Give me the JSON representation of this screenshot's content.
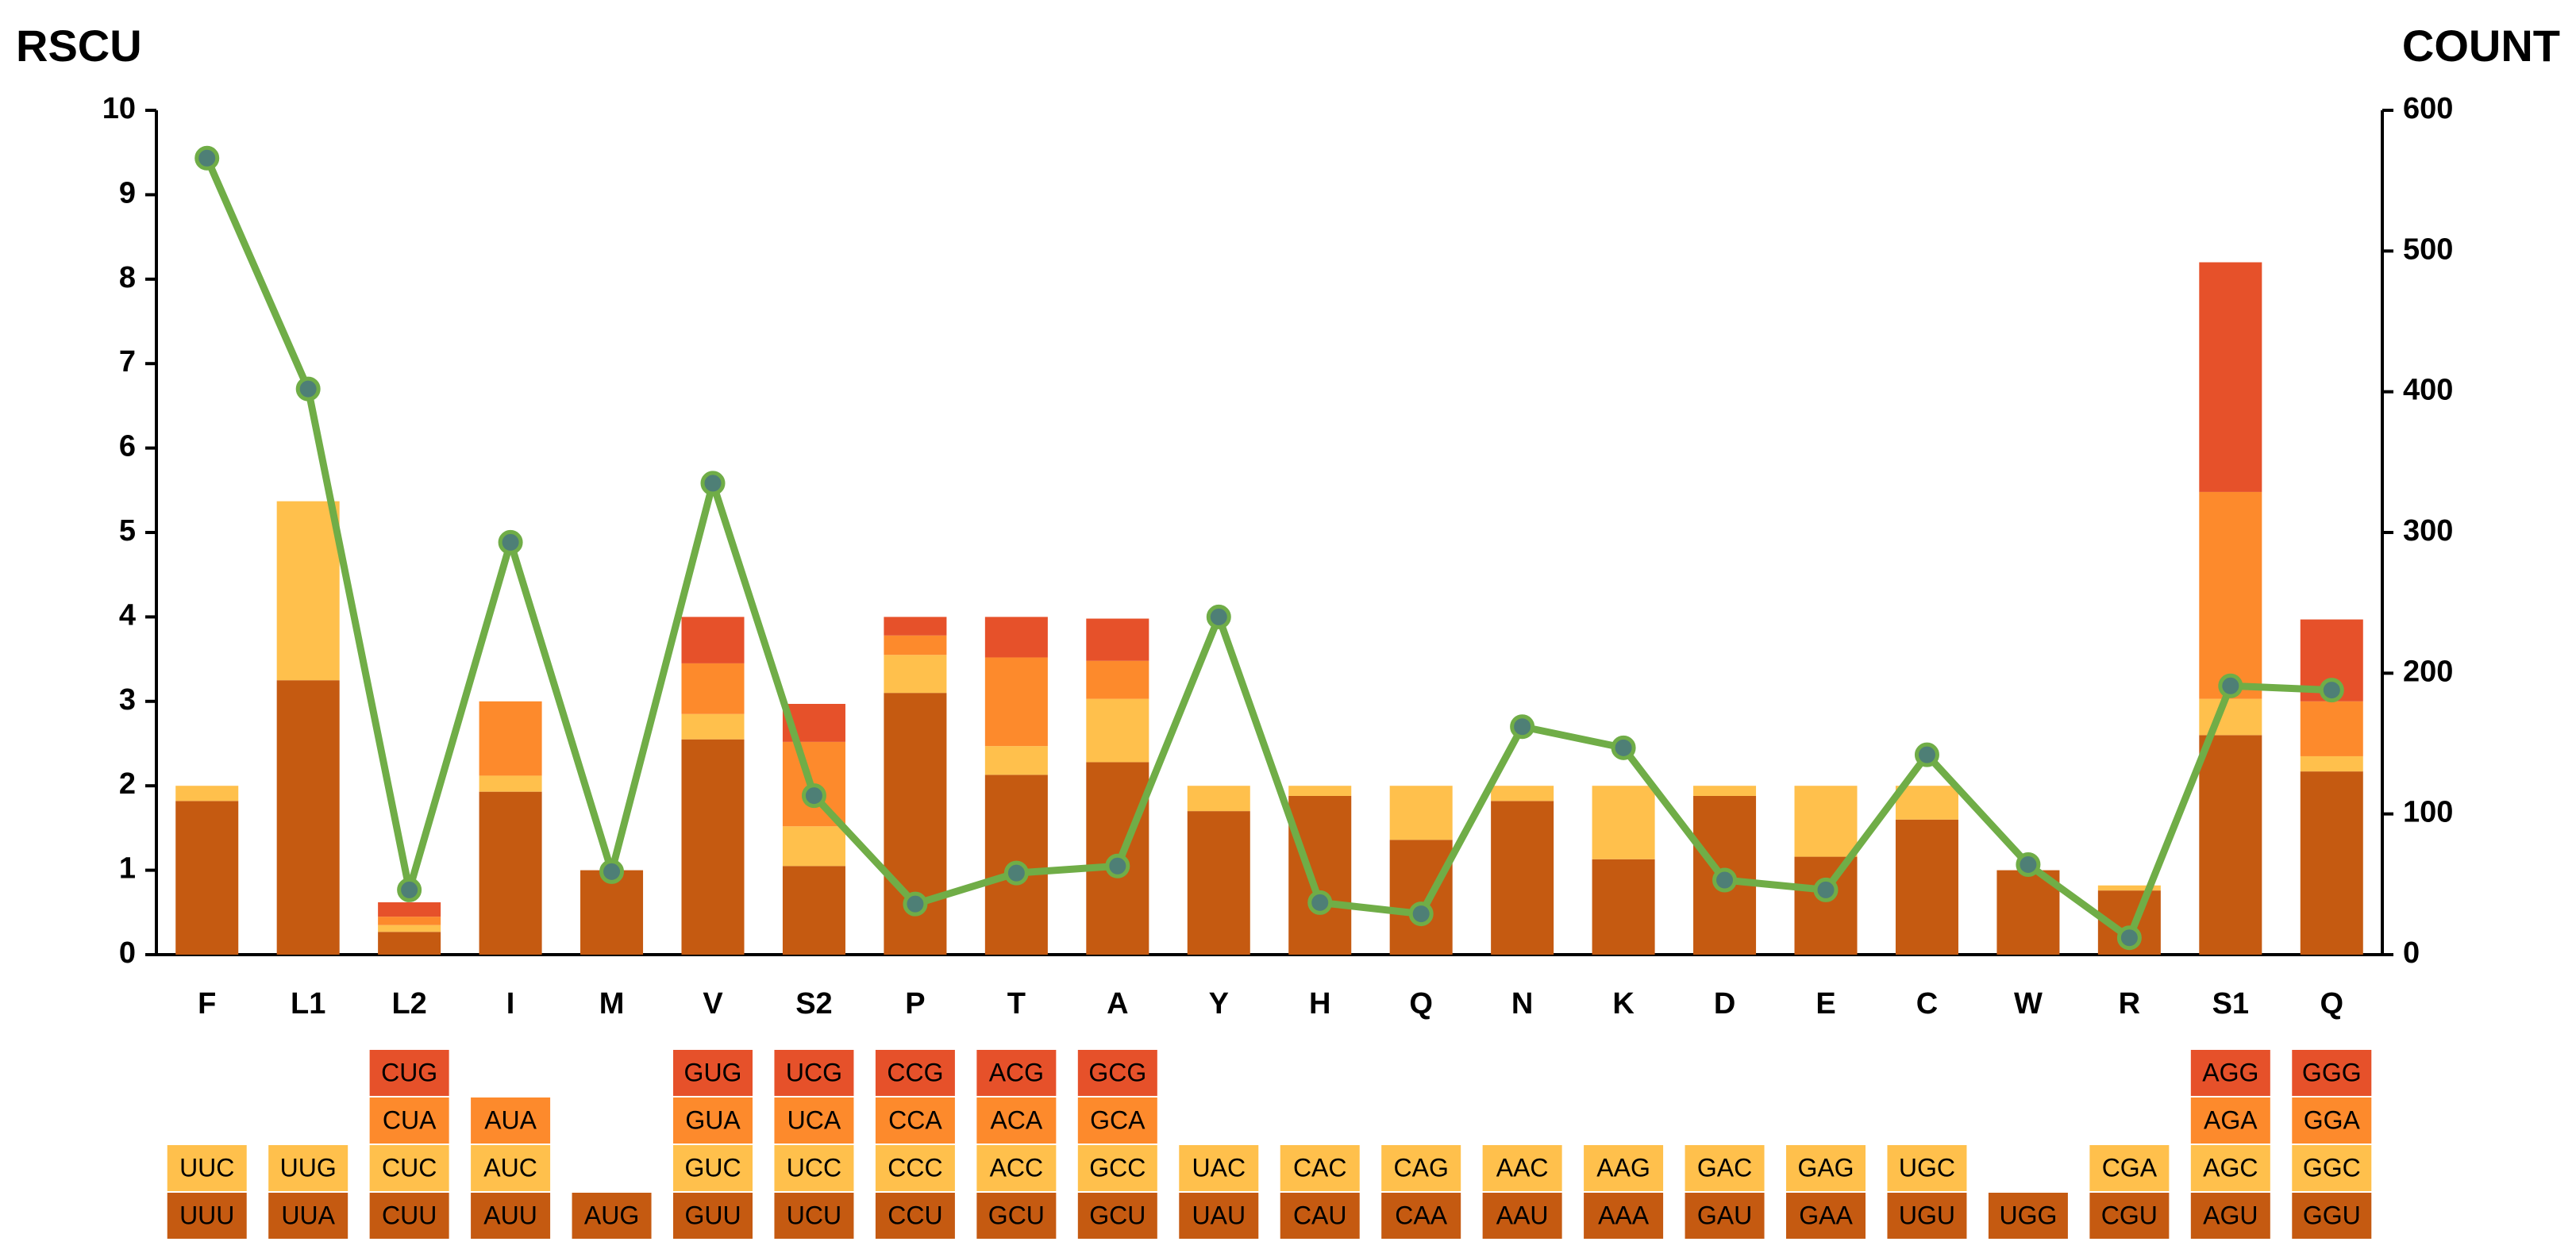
{
  "chart_data": {
    "type": "bar",
    "y_label": "RSCU",
    "y2_label": "COUNT",
    "categories": [
      "F",
      "L1",
      "L2",
      "I",
      "M",
      "V",
      "S2",
      "P",
      "T",
      "A",
      "Y",
      "H",
      "Q",
      "N",
      "K",
      "D",
      "E",
      "C",
      "W",
      "R",
      "S1",
      "Q"
    ],
    "ylim": [
      0,
      10
    ],
    "yticks": [
      0,
      1,
      2,
      3,
      4,
      5,
      6,
      7,
      8,
      9,
      10
    ],
    "y2lim": [
      0,
      600
    ],
    "y2ticks": [
      0,
      100,
      200,
      300,
      400,
      500,
      600
    ],
    "series": [
      {
        "type": "bar",
        "color": "#c55a11",
        "values": [
          1.82,
          3.25,
          0.27,
          1.93,
          1.0,
          2.55,
          1.05,
          3.1,
          2.13,
          2.28,
          1.7,
          1.88,
          1.36,
          1.82,
          1.13,
          1.88,
          1.16,
          1.6,
          1.0,
          0.76,
          2.6,
          2.17
        ],
        "codons": [
          "UUU",
          "UUA",
          "CUU",
          "AUU",
          "AUG",
          "GUU",
          "UCU",
          "CCU",
          "GCU",
          "GCU",
          "UAU",
          "CAU",
          "CAA",
          "AAU",
          "AAA",
          "GAU",
          "GAA",
          "UGU",
          "UGG",
          "CGU",
          "AGU",
          "GGU"
        ]
      },
      {
        "type": "bar",
        "color": "#ffc04c",
        "values": [
          0.18,
          2.12,
          0.08,
          0.19,
          null,
          0.3,
          0.47,
          0.45,
          0.34,
          0.75,
          0.3,
          0.12,
          0.64,
          0.18,
          0.87,
          0.12,
          0.84,
          0.4,
          null,
          0.06,
          0.43,
          0.18
        ],
        "codons": [
          "UUC",
          "UUG",
          "CUC",
          "AUC",
          null,
          "GUC",
          "UCC",
          "CCC",
          "ACC",
          "GCC",
          "UAC",
          "CAC",
          "CAG",
          "AAC",
          "AAG",
          "GAC",
          "GAG",
          "UGC",
          null,
          "CGA",
          "AGC",
          "GGC"
        ]
      },
      {
        "type": "bar",
        "color": "#fd8a2c",
        "values": [
          null,
          null,
          0.1,
          0.88,
          null,
          0.6,
          1.0,
          0.23,
          1.05,
          0.45,
          null,
          null,
          null,
          null,
          null,
          null,
          null,
          null,
          null,
          null,
          2.45,
          0.65
        ],
        "codons": [
          null,
          null,
          "CUA",
          "AUA",
          null,
          "GUA",
          "UCA",
          "CCA",
          "ACA",
          "GCA",
          null,
          null,
          null,
          null,
          null,
          null,
          null,
          null,
          null,
          null,
          "AGA",
          "GGA"
        ]
      },
      {
        "type": "bar",
        "color": "#e6512a",
        "values": [
          null,
          null,
          0.17,
          null,
          null,
          0.55,
          0.45,
          0.22,
          0.48,
          0.5,
          null,
          null,
          null,
          null,
          null,
          null,
          null,
          null,
          null,
          null,
          2.72,
          0.97
        ],
        "codons": [
          null,
          null,
          "CUG",
          null,
          null,
          "GUG",
          "UCG",
          "CCG",
          "ACG",
          "GCG",
          null,
          null,
          null,
          null,
          null,
          null,
          null,
          null,
          null,
          null,
          "AGG",
          "GGG"
        ]
      },
      {
        "type": "line",
        "axis": "y2",
        "color": "#70ad47",
        "values": [
          566,
          402,
          46,
          293,
          59,
          335,
          113,
          36,
          58,
          63,
          240,
          37,
          29,
          162,
          147,
          53,
          46,
          142,
          64,
          12,
          191,
          188
        ]
      }
    ]
  }
}
